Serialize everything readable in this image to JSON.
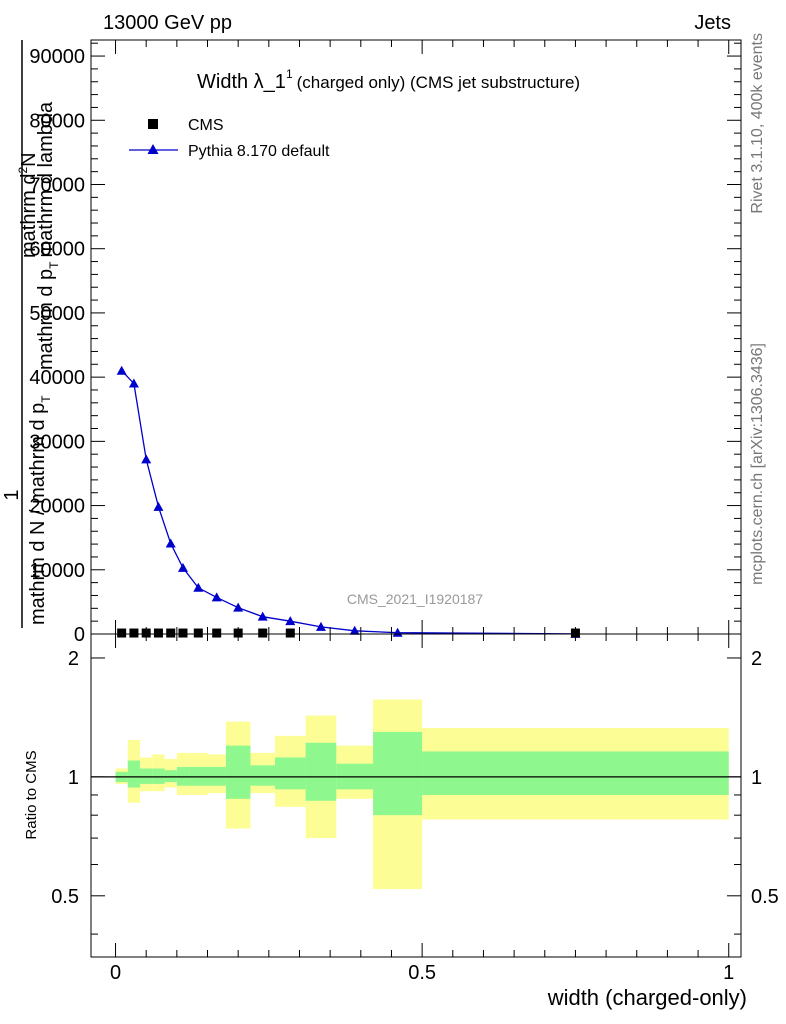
{
  "header": {
    "left": "13000 GeV pp",
    "right": "Jets"
  },
  "side_labels": {
    "version": "Rivet 3.1.10,  400k events",
    "source": "mcplots.cern.ch [arXiv:1306.3436]"
  },
  "watermark": "CMS_2021_I1920187",
  "chart_data": [
    {
      "type": "line",
      "title_main": "Width λ_1",
      "title_sup": "1",
      "title_suffix": "(charged only) (CMS jet substructure)",
      "ylabel": {
        "top1": "mathrm d",
        "top1sup": "2",
        "top1b": "N",
        "top2": "mathrm d p",
        "top2sub": "T",
        "top2b": "mathrm d lambda",
        "num": "1",
        "den": "mathrm d N / mathrm d p",
        "densub": "T"
      },
      "xlim": [
        -0.04,
        1.02
      ],
      "ylim": [
        0,
        92500
      ],
      "yticks": [
        0,
        10000,
        20000,
        30000,
        40000,
        50000,
        60000,
        70000,
        80000,
        90000
      ],
      "legend": {
        "placement": "top-left",
        "entries": [
          "CMS",
          "Pythia 8.170 default"
        ]
      },
      "colors": {
        "mc": "#0000cc",
        "data": "#000000"
      },
      "series": [
        {
          "name": "CMS",
          "marker": "square",
          "x": [
            0.01,
            0.03,
            0.05,
            0.07,
            0.09,
            0.11,
            0.135,
            0.165,
            0.2,
            0.24,
            0.285,
            0.75
          ],
          "y": [
            150,
            150,
            150,
            150,
            150,
            150,
            150,
            150,
            150,
            150,
            150,
            150
          ]
        },
        {
          "name": "Pythia 8.170 default",
          "marker": "triangle",
          "x": [
            0.01,
            0.03,
            0.05,
            0.07,
            0.09,
            0.11,
            0.135,
            0.165,
            0.2,
            0.24,
            0.285,
            0.335,
            0.39,
            0.46,
            0.75
          ],
          "y": [
            41000,
            39000,
            27200,
            19800,
            14100,
            10300,
            7200,
            5700,
            4100,
            2700,
            2000,
            1100,
            500,
            200,
            20
          ]
        }
      ]
    },
    {
      "type": "area",
      "ylabel": "Ratio to CMS",
      "xlabel": "width (charged-only)",
      "xlim": [
        -0.04,
        1.02
      ],
      "ylim": [
        0.35,
        2.3
      ],
      "yticks": [
        0.5,
        1,
        2
      ],
      "ytick_labels": [
        "0.5",
        "1",
        "2"
      ],
      "xticks": [
        0,
        0.5,
        1
      ],
      "xtick_labels": [
        "0",
        "0.5",
        "1"
      ],
      "reference_line": 1,
      "colors": {
        "inner": "#8ef78e",
        "outer": "#fdfd96",
        "line": "#000000"
      },
      "bins": [
        {
          "lo": 0.0,
          "hi": 0.02,
          "inner": [
            0.97,
            1.03
          ],
          "outer": [
            0.96,
            1.05
          ]
        },
        {
          "lo": 0.02,
          "hi": 0.04,
          "inner": [
            0.94,
            1.1
          ],
          "outer": [
            0.86,
            1.24
          ]
        },
        {
          "lo": 0.04,
          "hi": 0.06,
          "inner": [
            0.96,
            1.05
          ],
          "outer": [
            0.92,
            1.12
          ]
        },
        {
          "lo": 0.06,
          "hi": 0.08,
          "inner": [
            0.96,
            1.05
          ],
          "outer": [
            0.92,
            1.14
          ]
        },
        {
          "lo": 0.08,
          "hi": 0.1,
          "inner": [
            0.97,
            1.04
          ],
          "outer": [
            0.94,
            1.11
          ]
        },
        {
          "lo": 0.1,
          "hi": 0.12,
          "inner": [
            0.95,
            1.06
          ],
          "outer": [
            0.9,
            1.15
          ]
        },
        {
          "lo": 0.12,
          "hi": 0.15,
          "inner": [
            0.95,
            1.06
          ],
          "outer": [
            0.9,
            1.15
          ]
        },
        {
          "lo": 0.15,
          "hi": 0.18,
          "inner": [
            0.95,
            1.06
          ],
          "outer": [
            0.91,
            1.14
          ]
        },
        {
          "lo": 0.18,
          "hi": 0.22,
          "inner": [
            0.88,
            1.2
          ],
          "outer": [
            0.74,
            1.38
          ]
        },
        {
          "lo": 0.22,
          "hi": 0.26,
          "inner": [
            0.95,
            1.07
          ],
          "outer": [
            0.91,
            1.15
          ]
        },
        {
          "lo": 0.26,
          "hi": 0.31,
          "inner": [
            0.93,
            1.12
          ],
          "outer": [
            0.84,
            1.27
          ]
        },
        {
          "lo": 0.31,
          "hi": 0.36,
          "inner": [
            0.87,
            1.22
          ],
          "outer": [
            0.7,
            1.43
          ]
        },
        {
          "lo": 0.36,
          "hi": 0.42,
          "inner": [
            0.93,
            1.08
          ],
          "outer": [
            0.88,
            1.2
          ]
        },
        {
          "lo": 0.42,
          "hi": 0.5,
          "inner": [
            0.8,
            1.3
          ],
          "outer": [
            0.52,
            1.57
          ]
        },
        {
          "lo": 0.5,
          "hi": 1.0,
          "inner": [
            0.9,
            1.16
          ],
          "outer": [
            0.78,
            1.33
          ]
        }
      ]
    }
  ]
}
